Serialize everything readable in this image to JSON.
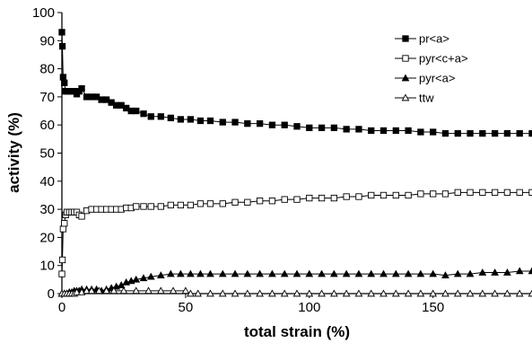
{
  "chart_data": {
    "type": "line",
    "xlabel": "total strain (%)",
    "ylabel": "activity (%)",
    "xlim": [
      0,
      190
    ],
    "ylim": [
      0,
      100
    ],
    "xticks": [
      0,
      50,
      100,
      150
    ],
    "yticks": [
      0,
      10,
      20,
      30,
      40,
      50,
      60,
      70,
      80,
      90,
      100
    ],
    "grid": false,
    "legend_position": "top-right",
    "series": [
      {
        "name": "pr<a>",
        "marker": "filled-square",
        "x": [
          0,
          0.2,
          0.5,
          1,
          1.5,
          2,
          3,
          4,
          5,
          6,
          7,
          8,
          10,
          12,
          14,
          16,
          18,
          20,
          22,
          24,
          26,
          28,
          30,
          33,
          36,
          40,
          44,
          48,
          52,
          56,
          60,
          65,
          70,
          75,
          80,
          85,
          90,
          95,
          100,
          105,
          110,
          115,
          120,
          125,
          130,
          135,
          140,
          145,
          150,
          155,
          160,
          165,
          170,
          175,
          180,
          185,
          190
        ],
        "y": [
          93,
          88,
          77,
          75,
          72,
          72,
          72,
          72,
          72,
          71,
          72,
          73,
          70,
          70,
          70,
          69,
          69,
          68,
          67,
          67,
          66,
          65,
          65,
          64,
          63,
          63,
          62.5,
          62,
          62,
          61.5,
          61.5,
          61,
          61,
          60.5,
          60.5,
          60,
          60,
          59.5,
          59,
          59,
          59,
          58.5,
          58.5,
          58,
          58,
          58,
          58,
          57.5,
          57.5,
          57,
          57,
          57,
          57,
          57,
          57,
          57,
          57
        ]
      },
      {
        "name": "pyr<c+a>",
        "marker": "open-square",
        "x": [
          0,
          0.2,
          0.5,
          1,
          1.5,
          2,
          3,
          4,
          5,
          6,
          7,
          8,
          10,
          12,
          14,
          16,
          18,
          20,
          22,
          24,
          26,
          28,
          30,
          33,
          36,
          40,
          44,
          48,
          52,
          56,
          60,
          65,
          70,
          75,
          80,
          85,
          90,
          95,
          100,
          105,
          110,
          115,
          120,
          125,
          130,
          135,
          140,
          145,
          150,
          155,
          160,
          165,
          170,
          175,
          180,
          185,
          190
        ],
        "y": [
          7,
          12,
          23,
          25,
          28,
          29,
          29,
          29,
          29,
          29,
          28,
          27.5,
          29.5,
          30,
          30,
          30,
          30,
          30,
          30,
          30,
          30.5,
          30.5,
          31,
          31,
          31,
          31,
          31.5,
          31.5,
          31.5,
          32,
          32,
          32,
          32.5,
          32.5,
          33,
          33,
          33.5,
          33.5,
          34,
          34,
          34,
          34.5,
          34.5,
          35,
          35,
          35,
          35,
          35.5,
          35.5,
          35.5,
          36,
          36,
          36,
          36,
          36,
          36,
          36
        ]
      },
      {
        "name": "pyr<a>",
        "marker": "filled-triangle",
        "x": [
          0,
          1,
          2,
          3,
          4,
          5,
          6,
          7,
          8,
          10,
          12,
          14,
          16,
          18,
          20,
          22,
          24,
          26,
          28,
          30,
          33,
          36,
          40,
          44,
          48,
          52,
          56,
          60,
          65,
          70,
          75,
          80,
          85,
          90,
          95,
          100,
          105,
          110,
          115,
          120,
          125,
          130,
          135,
          140,
          145,
          150,
          155,
          160,
          165,
          170,
          175,
          180,
          185,
          190
        ],
        "y": [
          0,
          0,
          0,
          0.5,
          0.5,
          1,
          1,
          1,
          1.5,
          1.5,
          1.5,
          1.5,
          1,
          1.5,
          2,
          2.5,
          3,
          4,
          4.5,
          5,
          5.5,
          6,
          6.5,
          7,
          7,
          7,
          7,
          7,
          7,
          7,
          7,
          7,
          7,
          7,
          7,
          7,
          7,
          7,
          7,
          7,
          7,
          7,
          7,
          7,
          7,
          7,
          6.5,
          7,
          7,
          7.5,
          7.5,
          7.5,
          8,
          8
        ]
      },
      {
        "name": "ttw",
        "marker": "open-triangle",
        "x": [
          0,
          1,
          2,
          3,
          4,
          5,
          6,
          8,
          10,
          12,
          15,
          18,
          21,
          25,
          30,
          35,
          40,
          45,
          50,
          52,
          55,
          60,
          65,
          70,
          75,
          80,
          85,
          90,
          95,
          100,
          105,
          110,
          115,
          120,
          125,
          130,
          135,
          140,
          145,
          150,
          155,
          160,
          165,
          170,
          175,
          180,
          185,
          190
        ],
        "y": [
          0,
          0,
          0,
          0,
          0,
          0,
          0.5,
          0.5,
          1,
          1,
          1,
          1,
          1,
          1,
          1,
          1,
          1,
          1,
          1,
          0,
          0,
          0,
          0,
          0,
          0,
          0,
          0,
          0,
          0,
          0,
          0,
          0,
          0,
          0,
          0,
          0,
          0,
          0,
          0,
          0,
          0,
          0,
          0,
          0,
          0,
          0,
          0,
          0
        ]
      }
    ]
  }
}
